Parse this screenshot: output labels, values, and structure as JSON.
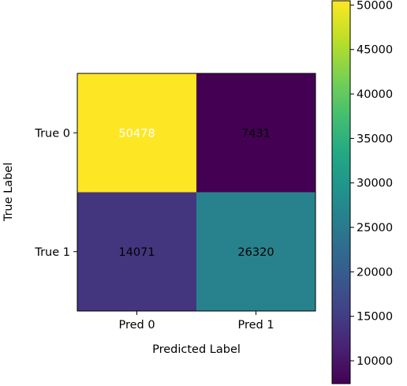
{
  "chart_data": {
    "type": "heatmap",
    "title": "",
    "xlabel": "Predicted Label",
    "ylabel": "True Label",
    "x_categories": [
      "Pred 0",
      "Pred 1"
    ],
    "y_categories": [
      "True 0",
      "True 1"
    ],
    "values": [
      [
        50478,
        7431
      ],
      [
        14071,
        26320
      ]
    ],
    "colormap": "viridis",
    "colorbar": {
      "range": [
        7431,
        50478
      ],
      "ticks": [
        10000,
        15000,
        20000,
        25000,
        30000,
        35000,
        40000,
        45000,
        50000
      ]
    }
  }
}
